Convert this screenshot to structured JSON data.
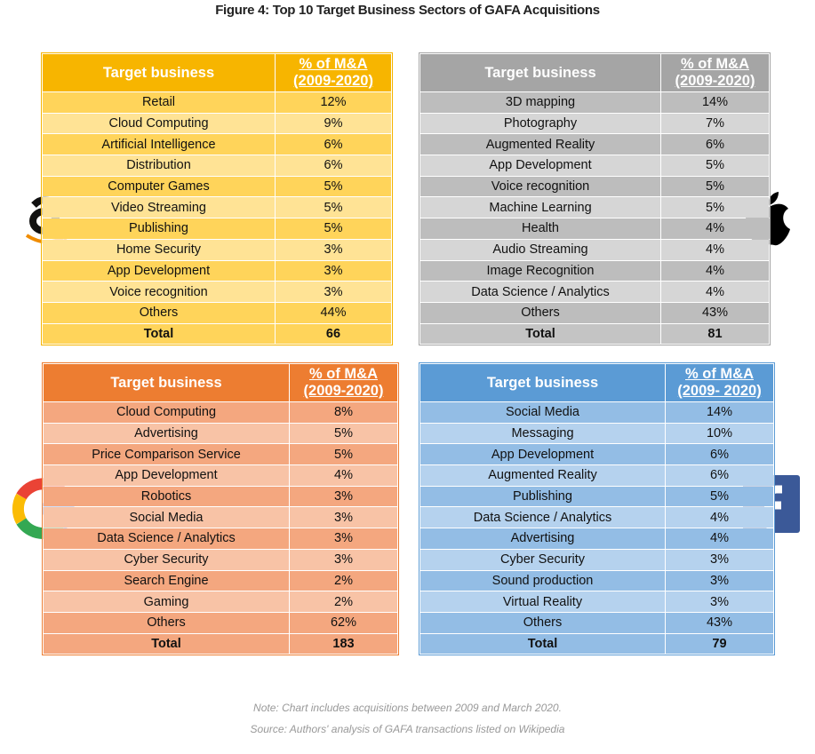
{
  "title": "Figure 4: Top 10 Target Business Sectors of GAFA Acquisitions",
  "tables": [
    {
      "header": [
        "Target business",
        "% of  M&A",
        "(2009-2020)"
      ],
      "rows": [
        [
          "Retail",
          "12%"
        ],
        [
          "Cloud Computing",
          "9%"
        ],
        [
          "Artificial Intelligence",
          "6%"
        ],
        [
          "Distribution",
          "6%"
        ],
        [
          "Computer Games",
          "5%"
        ],
        [
          "Video Streaming",
          "5%"
        ],
        [
          "Publishing",
          "5%"
        ],
        [
          "Home Security",
          "3%"
        ],
        [
          "App Development",
          "3%"
        ],
        [
          "Voice recognition",
          "3%"
        ],
        [
          "Others",
          "44%"
        ]
      ],
      "total": [
        "Total",
        "66"
      ]
    },
    {
      "header": [
        "Target business",
        "% of  M&A",
        "(2009-2020)"
      ],
      "rows": [
        [
          "3D mapping",
          "14%"
        ],
        [
          "Photography",
          "7%"
        ],
        [
          "Augmented Reality",
          "6%"
        ],
        [
          "App Development",
          "5%"
        ],
        [
          "Voice recognition",
          "5%"
        ],
        [
          "Machine Learning",
          "5%"
        ],
        [
          "Health",
          "4%"
        ],
        [
          "Audio Streaming",
          "4%"
        ],
        [
          "Image Recognition",
          "4%"
        ],
        [
          "Data Science / Analytics",
          "4%"
        ],
        [
          "Others",
          "43%"
        ]
      ],
      "total": [
        "Total",
        "81"
      ]
    },
    {
      "header": [
        "Target business",
        "% of  M&A",
        "(2009-2020)"
      ],
      "rows": [
        [
          "Cloud Computing",
          "8%"
        ],
        [
          "Advertising",
          "5%"
        ],
        [
          "Price Comparison Service",
          "5%"
        ],
        [
          "App Development",
          "4%"
        ],
        [
          "Robotics",
          "3%"
        ],
        [
          "Social Media",
          "3%"
        ],
        [
          "Data Science / Analytics",
          "3%"
        ],
        [
          "Cyber Security",
          "3%"
        ],
        [
          "Search Engine",
          "2%"
        ],
        [
          "Gaming",
          "2%"
        ],
        [
          "Others",
          "62%"
        ]
      ],
      "total": [
        "Total",
        "183"
      ]
    },
    {
      "header": [
        "Target business",
        "% of  M&A",
        "(2009- 2020)"
      ],
      "rows": [
        [
          "Social Media",
          "14%"
        ],
        [
          "Messaging",
          "10%"
        ],
        [
          "App Development",
          "6%"
        ],
        [
          "Augmented Reality",
          "6%"
        ],
        [
          "Publishing",
          "5%"
        ],
        [
          "Data Science / Analytics",
          "4%"
        ],
        [
          "Advertising",
          "4%"
        ],
        [
          "Cyber Security",
          "3%"
        ],
        [
          "Sound production",
          "3%"
        ],
        [
          "Virtual Reality",
          "3%"
        ],
        [
          "Others",
          "43%"
        ]
      ],
      "total": [
        "Total",
        "79"
      ]
    }
  ],
  "notes": [
    "Note: Chart includes acquisitions between 2009 and March 2020.",
    "Source: Authors' analysis of GAFA transactions listed on Wikipedia"
  ]
}
